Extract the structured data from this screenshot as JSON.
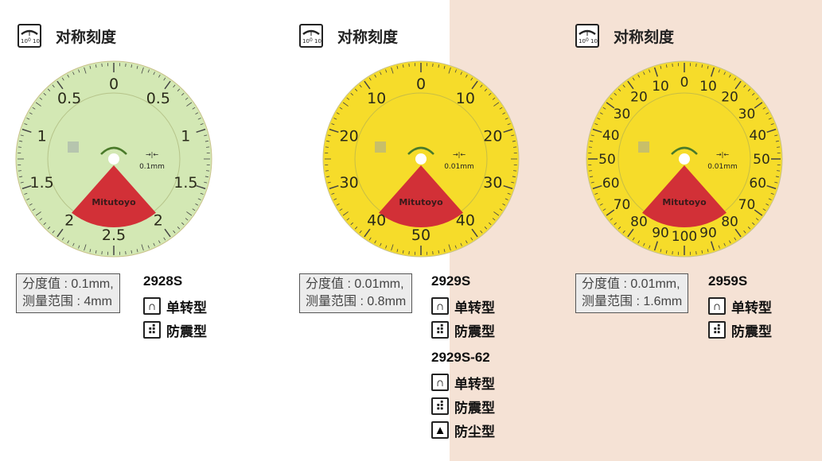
{
  "header_label": "对称刻度",
  "header_icon": "symmetric-scale-icon",
  "colors": {
    "green_dial": "#d3e8b4",
    "yellow_dial": "#f6dc2a",
    "red_sector": "#d23037",
    "peach_bg": "#f5e2d5"
  },
  "dials": [
    {
      "labels": [
        "0",
        "0.5",
        "1",
        "1.5",
        "2",
        "2.5"
      ],
      "unit": "0.1mm",
      "brand": "Mitutoyo",
      "face": "#d3e8b4"
    },
    {
      "labels": [
        "0",
        "10",
        "20",
        "30",
        "40",
        "50"
      ],
      "unit": "0.01mm",
      "brand": "Mitutoyo",
      "face": "#f6dc2a"
    },
    {
      "labels": [
        "0",
        "10",
        "20",
        "30",
        "40",
        "50",
        "60",
        "70",
        "80",
        "90",
        "100"
      ],
      "unit": "0.01mm",
      "brand": "Mitutoyo",
      "face": "#f6dc2a"
    }
  ],
  "products": [
    {
      "spec1": "分度值 : 0.1mm,",
      "spec2": "测量范围 : 4mm",
      "models": [
        {
          "code": "2928S",
          "features": [
            {
              "label": "单转型",
              "icon": "single-revolution-icon"
            },
            {
              "label": "防震型",
              "icon": "shockproof-icon"
            }
          ]
        }
      ]
    },
    {
      "spec1": "分度值 : 0.01mm,",
      "spec2": "测量范围 : 0.8mm",
      "models": [
        {
          "code": "2929S",
          "features": [
            {
              "label": "单转型",
              "icon": "single-revolution-icon"
            },
            {
              "label": "防震型",
              "icon": "shockproof-icon"
            }
          ]
        },
        {
          "code": "2929S-62",
          "features": [
            {
              "label": "单转型",
              "icon": "single-revolution-icon"
            },
            {
              "label": "防震型",
              "icon": "shockproof-icon"
            },
            {
              "label": "防尘型",
              "icon": "dustproof-icon"
            }
          ]
        }
      ]
    },
    {
      "spec1": "分度值 : 0.01mm,",
      "spec2": "测量范围 : 1.6mm",
      "models": [
        {
          "code": "2959S",
          "features": [
            {
              "label": "单转型",
              "icon": "single-revolution-icon"
            },
            {
              "label": "防震型",
              "icon": "shockproof-icon"
            }
          ]
        }
      ]
    }
  ]
}
